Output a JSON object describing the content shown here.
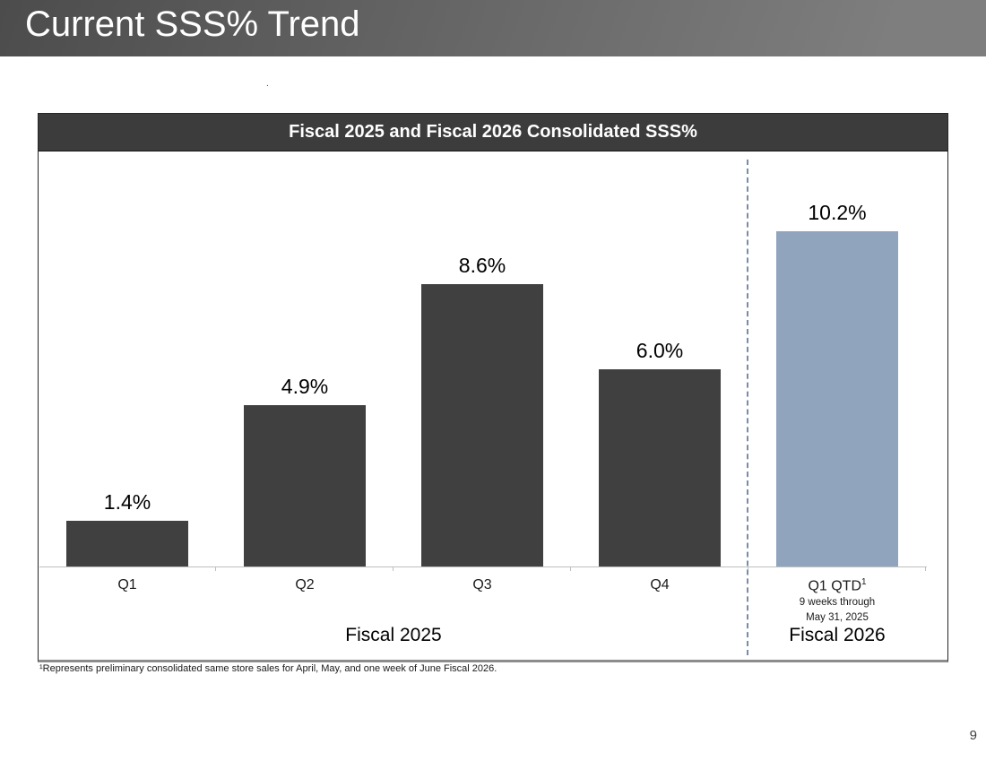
{
  "header": {
    "title": "Current SSS% Trend"
  },
  "stray_dot": ".",
  "chart": {
    "title": "Fiscal 2025 and Fiscal 2026 Consolidated SSS%"
  },
  "chart_data": {
    "type": "bar",
    "title": "Fiscal 2025 and Fiscal 2026 Consolidated SSS%",
    "categories": [
      "Q1",
      "Q2",
      "Q3",
      "Q4",
      "Q1 QTD"
    ],
    "values": [
      1.4,
      4.9,
      8.6,
      6.0,
      10.2
    ],
    "data_labels": [
      "1.4%",
      "4.9%",
      "8.6%",
      "6.0%",
      "10.2%"
    ],
    "bar_colors": [
      "#404040",
      "#404040",
      "#404040",
      "#404040",
      "#91a4bd"
    ],
    "category_notes": {
      "4": {
        "sup": "1",
        "lines": [
          "9 weeks through",
          "May 31, 2025"
        ]
      }
    },
    "groups": [
      {
        "label": "Fiscal 2025",
        "start": 0,
        "end": 3
      },
      {
        "label": "Fiscal 2026",
        "start": 4,
        "end": 4
      }
    ],
    "divider": {
      "after_index": 3,
      "color": "#7b8ca4",
      "style": "dashed"
    },
    "ylim": [
      0,
      12.6
    ],
    "xlabel": "",
    "ylabel": "",
    "grid": false,
    "legend": false,
    "axis_color": "#bfbfbf"
  },
  "footnote": "¹Represents preliminary consolidated same store sales for April, May, and one week of June Fiscal 2026.",
  "page_number": "9"
}
